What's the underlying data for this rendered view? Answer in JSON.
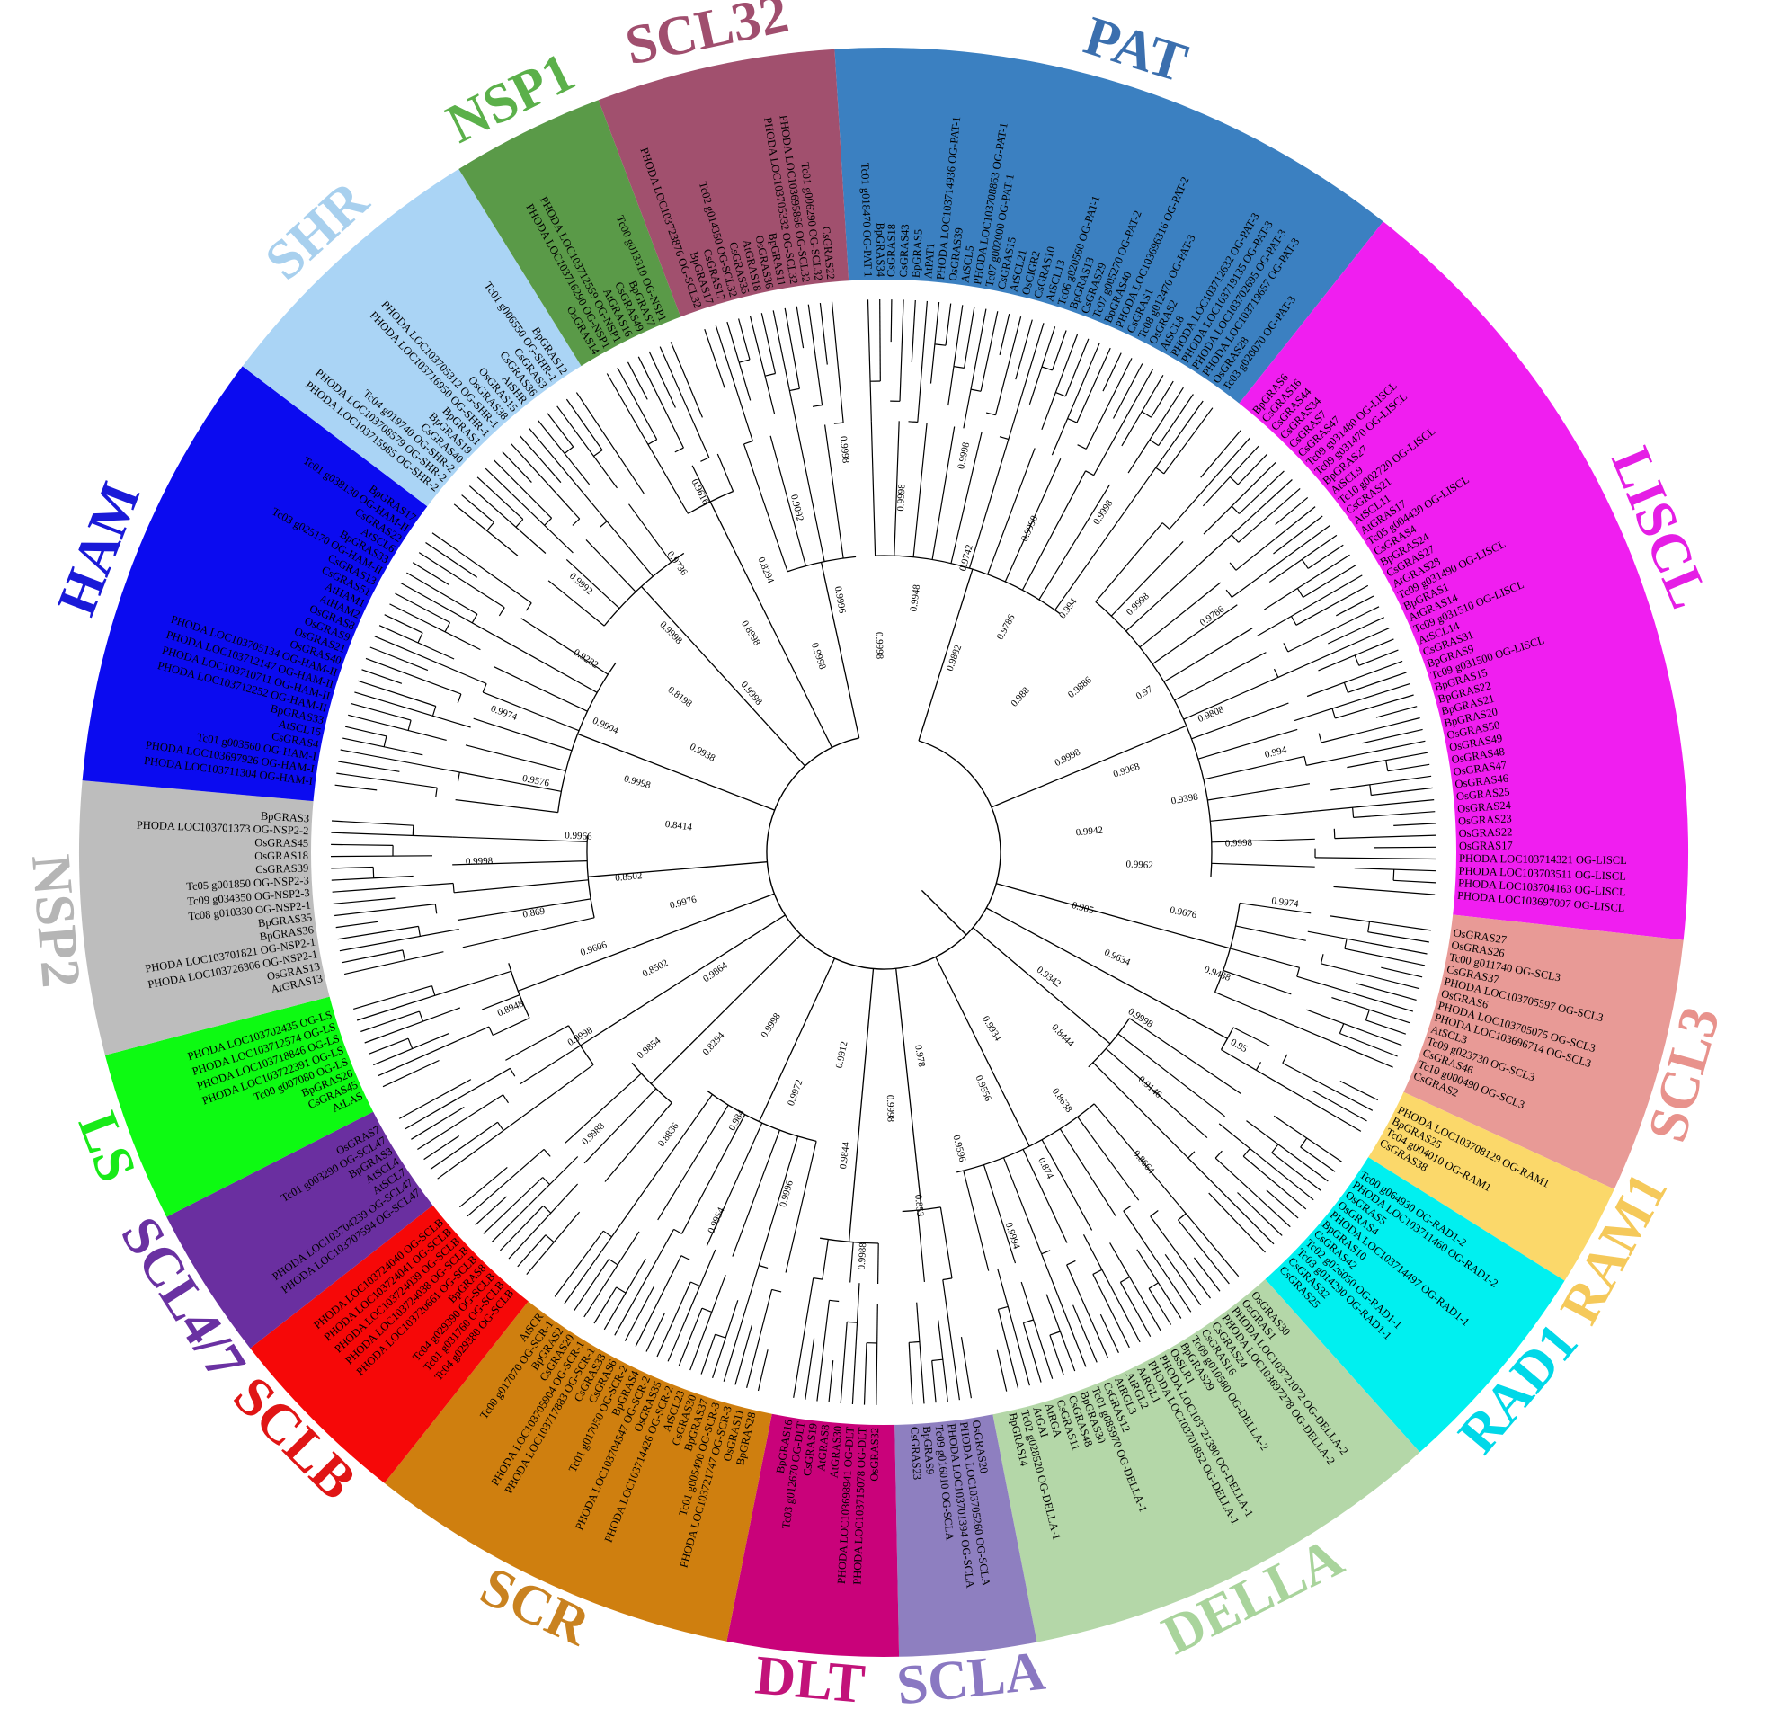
{
  "subfamilies": [
    {
      "name": "PAT",
      "color": "#3b80c1",
      "label_color": "#3b6fae",
      "leaves": [
        "Tc01 g018470 OG-PAT-1",
        "BpGRAS34",
        "CsGRAS18",
        "CsGRAS43",
        "BpGRAS5",
        "AtPAT1",
        "PHODA LOC103714936 OG-PAT-1",
        "OsGRAS39",
        "AtSCL5",
        "PHODA LOC103708863 OG-PAT-1",
        "Tc07 g002000 OG-PAT-1",
        "CsGRAS15",
        "AtSCL21",
        "OsCIGR2",
        "CsGRAS10",
        "AtSCL13",
        "Tc06 g020560 OG-PAT-1",
        "BpGRAS13",
        "CsGRAS29",
        "Tc07 g005270 OG-PAT-2",
        "BpGRAS40",
        "PHODA LOC103696316 OG-PAT-2",
        "CsGRAS1",
        "Tc08 g012470 OG-PAT-3",
        "OsGRAS2",
        "AtSCL8",
        "PHODA LOC103712632 OG-PAT-3",
        "PHODA LOC103719135 OG-PAT-3",
        "PHODA LOC103702695 OG-PAT-3",
        "PHODA LOC103719657 OG-PAT-3",
        "OsGRAS28",
        "Tc03 g020070 OG-PAT-3"
      ]
    },
    {
      "name": "LISCL",
      "color": "#f01ef0",
      "label_color": "#e51ee5",
      "leaves": [
        "BpGRAS6",
        "CsGRAS16",
        "CsGRAS44",
        "CsGRAS34",
        "CsGRAS7",
        "CsGRAS47",
        "Tc09 g031480 OG-LISCL",
        "Tc09 g031470 OG-LISCL",
        "BpGRAS27",
        "AtSCL9",
        "Tc10 g002720 OG-LISCL",
        "CsGRAS21",
        "AtSCL11",
        "AtGRAS17",
        "Tc05 g004430 OG-LISCL",
        "CsGRAS4",
        "BpGRAS24",
        "CsGRAS27",
        "AtGRAS28",
        "Tc09 g031490 OG-LISCL",
        "BpGRAS1",
        "AtGRAS14",
        "Tc09 g031510 OG-LISCL",
        "AtSCL14",
        "CsGRAS31",
        "BpGRAS9",
        "Tc09 g031500 OG-LISCL",
        "BpGRAS15",
        "BpGRAS22",
        "BpGRAS21",
        "BpGRAS20",
        "OsGRAS50",
        "OsGRAS49",
        "OsGRAS48",
        "OsGRAS47",
        "OsGRAS46",
        "OsGRAS25",
        "OsGRAS24",
        "OsGRAS23",
        "OsGRAS22",
        "OsGRAS17",
        "PHODA LOC103714321 OG-LISCL",
        "PHODA LOC103703511 OG-LISCL",
        "PHODA LOC103704163 OG-LISCL",
        "PHODA LOC103697097 OG-LISCL"
      ]
    },
    {
      "name": "SCL3",
      "color": "#e89a96",
      "label_color": "#e8928c",
      "leaves": [
        "OsGRAS27",
        "OsGRAS26",
        "Tc00 g011740 OG-SCL3",
        "CsGRAS37",
        "PHODA LOC103705597 OG-SCL3",
        "OsGRAS6",
        "PHODA LOC103705075 OG-SCL3",
        "PHODA LOC103696714 OG-SCL3",
        "AtSCL3",
        "Tc09 g023730 OG-SCL3",
        "CsGRAS46",
        "Tc10 g000490 OG-SCL3",
        "CsGRAS2"
      ]
    },
    {
      "name": "RAM1",
      "color": "#fbd86a",
      "label_color": "#f5c95a",
      "leaves": [
        "PHODA LOC103708129 OG-RAM1",
        "BpGRAS25",
        "Tc04 g004010 OG-RAM1",
        "CsGRAS38"
      ]
    },
    {
      "name": "RAD1",
      "color": "#00f0f0",
      "label_color": "#00d8e8",
      "leaves": [
        "Tc00 g064930 OG-RAD1-2",
        "PHODA LOC103711460 OG-RAD1-2",
        "OsGRAS5",
        "OsGRAS4",
        "PHODA LOC103714497 OG-RAD1-1",
        "BpGRAS10",
        "CsGRAS42",
        "Tc02 g026050 OG-RAD1-1",
        "Tc03 g014290 OG-RAD1-1",
        "CsGRAS32",
        "CsGRAS25"
      ]
    },
    {
      "name": "DELLA",
      "color": "#b4d7a8",
      "label_color": "#a9d49c",
      "leaves": [
        "OsGRAS30",
        "OsGRAS1",
        "PHODA LOC103721072 OG-DELLA-2",
        "PHODA LOC103697278 OG-DELLA-2",
        "CsGRAS24",
        "CsGRAS16",
        "Tc09 g010580 OG-DELLA-2",
        "BpGRAS29",
        "OsSLR1",
        "PHODA LOC103721390 OG-DELLA-1",
        "PHODA LOC103701852 OG-DELLA-1",
        "AtRGL1",
        "AtRGL2",
        "AtRGL3",
        "CsGRAS12",
        "Tc01 g085970 OG-DELLA-1",
        "BpGRAS30",
        "CsGRAS48",
        "CsGRAS11",
        "AtRGA",
        "AtGAI",
        "Tc02 g028520 OG-DELLA-1",
        "BpGRAS14"
      ]
    },
    {
      "name": "SCLA",
      "color": "#8e7fc0",
      "label_color": "#8a78c2",
      "leaves": [
        "OsGRAS20",
        "PHODA LOC103705260 OG-SCLA",
        "PHODA LOC103701394 OG-SCLA",
        "Tc09 g016010 OG-SCLA",
        "BpGRAS9",
        "CsGRAS23"
      ]
    },
    {
      "name": "DLT",
      "color": "#c9027a",
      "label_color": "#c2137a",
      "leaves": [
        "OsGRAS32",
        "PHODA LOC103715078 OG-DLT",
        "PHODA LOC103698941 OG-DLT",
        "AtGRAS30",
        "AtGRAS8",
        "CsGRAS19",
        "Tc03 g012670 OG-DLT",
        "BpGRAS16"
      ]
    },
    {
      "name": "SCR",
      "color": "#cf7f0f",
      "label_color": "#c98220",
      "leaves": [
        "BpGRAS28",
        "OsGRAS11",
        "PHODA LOC103721747 OG-SCR-3",
        "Tc01 g005400 OG-SCR-3",
        "BpGRAS37",
        "CsGRAS30",
        "AtSCL23",
        "PHODA LOC103714426 OG-SCR-2",
        "OsGRAS35",
        "PHODA LOC103704547 OG-SCR-2",
        "BpGRAS4",
        "Tc01 g017050 OG-SCR-2",
        "CsGRAS6",
        "CsGRAS33",
        "PHODA LOC103717883 OG-SCR-1",
        "PHODA LOC103705904 OG-SCR-1",
        "CsGRAS20",
        "BpGRAS2",
        "Tc00 g017070 OG-SCR-1",
        "AtSCR"
      ]
    },
    {
      "name": "SCLB",
      "color": "#f60808",
      "label_color": "#e01515",
      "leaves": [
        "Tc04 g029380 OG-SCLB",
        "Tc01 g031760 OG-SCLB",
        "Tc04 g029390 OG-SCLB",
        "BpGRAS8",
        "PHODA LOC103720661 OG-SCLB",
        "PHODA LOC103724038 OG-SCLB",
        "PHODA LOC103724039 OG-SCLB",
        "PHODA LOC103724041 OG-SCLB",
        "PHODA LOC103724040 OG-SCLB"
      ]
    },
    {
      "name": "SCL4/7",
      "color": "#6a2fa0",
      "label_color": "#6a31a2",
      "leaves": [
        "PHODA LOC103707594 OG-SCL47",
        "PHODA LOC103704239 OG-SCL47",
        "AtSCL7",
        "AtSCL4",
        "BpGRAS3",
        "Tc01 g003290 OG-SCL47",
        "OsGRAS7"
      ]
    },
    {
      "name": "LS",
      "color": "#0dfa12",
      "label_color": "#18ea18",
      "leaves": [
        "AtLAS",
        "CsGRAS45",
        "BpGRAS26",
        "Tc00 g007080 OG-LS",
        "PHODA LOC103722391 OG-LS",
        "PHODA LOC103718846 OG-LS",
        "PHODA LOC103712574 OG-LS",
        "PHODA LOC103702435 OG-LS"
      ]
    },
    {
      "name": "NSP2",
      "color": "#bdbdbd",
      "label_color": "#b5b5b5",
      "leaves": [
        "AtGRAS13",
        "OsGRAS13",
        "PHODA LOC103726306 OG-NSP2-1",
        "PHODA LOC103701821 OG-NSP2-1",
        "BpGRAS36",
        "BpGRAS35",
        "Tc08 g010330 OG-NSP2-1",
        "Tc09 g034350 OG-NSP2-3",
        "Tc05 g001850 OG-NSP2-3",
        "CsGRAS39",
        "OsGRAS18",
        "OsGRAS45",
        "PHODA LOC103701373 OG-NSP2-2",
        "BpGRAS3"
      ]
    },
    {
      "name": "HAM",
      "color": "#0b0bf0",
      "label_color": "#1a1ad8",
      "leaves": [
        "PHODA LOC103711304 OG-HAM-I",
        "PHODA LOC103697926 OG-HAM-I",
        "Tc01 g003560 OG-HAM-I",
        "CsGRAS4",
        "AtSCL15",
        "BpGRAS33",
        "PHODA LOC103712252 OG-HAM-II",
        "PHODA LOC103710711 OG-HAM-II",
        "PHODA LOC103712147 OG-HAM-II",
        "PHODA LOC103705134 OG-HAM-II",
        "OsGRAS40",
        "OsGRAS21",
        "OsGRAS9",
        "OsGRAS8",
        "AtHAM2",
        "AtHAM1",
        "CsGRAS51",
        "CsGRAS13",
        "Tc03 g025170 OG-HAM-II",
        "BpGRAS33",
        "AtSCL6",
        "CsGRAS22",
        "Tc01 g038130 OG-HAM-II",
        "BpGRAS17"
      ]
    },
    {
      "name": "SHR",
      "color": "#aad4f5",
      "label_color": "#a8d0ee",
      "leaves": [
        "PHODA LOC103715985 OG-SHR-2",
        "PHODA LOC103708579 OG-SHR-2",
        "Tc04 g019740 OG-SHR-2",
        "CsGRAS40",
        "BpGRAS19",
        "BpGRAS1",
        "PHODA LOC103716950 OG-SHR-1",
        "PHODA LOC103705312 OG-SHR-1",
        "OsGRAS38",
        "OsGRAS15",
        "AtSHR",
        "CsGRAS36",
        "CsGRAS3",
        "Tc01 g006550 OG-SHR-1",
        "BpGRAS12"
      ]
    },
    {
      "name": "NSP1",
      "color": "#5a9a48",
      "label_color": "#5bb04a",
      "leaves": [
        "OsGRAS14",
        "PHODA LOC103716290 OG-NSP1",
        "PHODA LOC103712559 OG-NSP1",
        "AtGRAS16",
        "CsGRAS49",
        "BpGRAS7",
        "Tc00 g013310 OG-NSP1"
      ]
    },
    {
      "name": "SCL32",
      "color": "#a1506e",
      "label_color": "#a04e6e",
      "leaves": [
        "PHODA LOC103723876 OG-SCL32",
        "BpGRAS17",
        "CsGRAS17",
        "Tc02 g014350 OG-SCL32",
        "CsGRAS35",
        "AtGRAS18",
        "OsGRAS36",
        "BpGRAS11",
        "PHODA LOC103705332 OG-SCL32",
        "PHODA LOC103695866 OG-SCL32",
        "Tc01 g006290 OG-SCL32",
        "CsGRAS22"
      ]
    }
  ],
  "support_values": [
    "0.9998",
    "0.9998",
    "0.9948",
    "0.9998",
    "0.9742",
    "0.9882",
    "0.9998",
    "0.9786",
    "0.9998",
    "0.994",
    "0.988",
    "0.9998",
    "0.9886",
    "0.9786",
    "0.97",
    "0.9998",
    "0.9808",
    "0.9968",
    "0.994",
    "0.9398",
    "0.9942",
    "0.9998",
    "0.9962",
    "0.9974",
    "0.9676",
    "0.905",
    "0.9438",
    "0.9634",
    "0.95",
    "0.9998",
    "0.9342",
    "0.9146",
    "0.8444",
    "0.8664",
    "0.8638",
    "0.9934",
    "0.874",
    "0.9556",
    "0.9994",
    "0.9596",
    "0.978",
    "0.853",
    "0.9998",
    "0.9988",
    "0.9844",
    "0.9912",
    "0.9996",
    "0.9972",
    "0.9954",
    "0.984",
    "0.9998",
    "0.8836",
    "0.8294",
    "0.9988",
    "0.9854",
    "0.9864",
    "0.9998",
    "0.8502",
    "0.8948",
    "0.9606",
    "0.9976",
    "0.869",
    "0.8502",
    "0.9998",
    "0.9966",
    "0.8414",
    "0.9576",
    "0.9998",
    "0.9974",
    "0.9904",
    "0.9938",
    "0.9282",
    "0.8198",
    "0.9992",
    "0.9998",
    "0.9998",
    "0.9736",
    "0.8998",
    "0.9616",
    "0.8294",
    "0.9998",
    "0.9092",
    "0.9996",
    "0.9998"
  ]
}
